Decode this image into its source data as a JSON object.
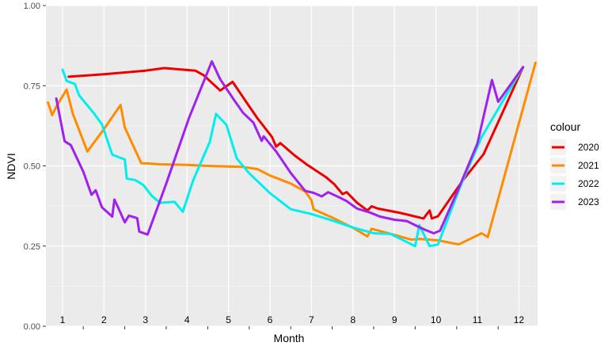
{
  "chart_data": {
    "type": "line",
    "xlabel": "Month",
    "ylabel": "NDVI",
    "xlim": [
      0.6,
      12.45
    ],
    "ylim": [
      0,
      1
    ],
    "month_ticks": [
      "1",
      "2",
      "3",
      "4",
      "5",
      "6",
      "7",
      "8",
      "9",
      "10",
      "11",
      "12"
    ],
    "y_ticks": [
      "0.00",
      "0.25",
      "0.50",
      "0.75",
      "1.00"
    ],
    "y_tick_values": [
      0,
      0.25,
      0.5,
      0.75,
      1.0
    ],
    "grid": true,
    "legend": {
      "title": "colour",
      "position": "right"
    },
    "series": [
      {
        "name": "2020",
        "color": "#ee0000",
        "points": [
          [
            1.15,
            0.778
          ],
          [
            2.0,
            0.786
          ],
          [
            3.0,
            0.797
          ],
          [
            3.45,
            0.805
          ],
          [
            4.2,
            0.797
          ],
          [
            4.4,
            0.783
          ],
          [
            4.8,
            0.735
          ],
          [
            5.1,
            0.762
          ],
          [
            5.4,
            0.705
          ],
          [
            5.7,
            0.648
          ],
          [
            6.05,
            0.59
          ],
          [
            6.15,
            0.56
          ],
          [
            6.25,
            0.571
          ],
          [
            6.6,
            0.532
          ],
          [
            6.9,
            0.503
          ],
          [
            7.35,
            0.465
          ],
          [
            7.55,
            0.443
          ],
          [
            7.75,
            0.412
          ],
          [
            7.85,
            0.418
          ],
          [
            8.1,
            0.385
          ],
          [
            8.35,
            0.361
          ],
          [
            8.45,
            0.374
          ],
          [
            8.6,
            0.367
          ],
          [
            9.15,
            0.353
          ],
          [
            9.7,
            0.336
          ],
          [
            9.85,
            0.361
          ],
          [
            9.9,
            0.336
          ],
          [
            10.05,
            0.343
          ],
          [
            10.65,
            0.455
          ],
          [
            11.15,
            0.537
          ],
          [
            11.6,
            0.665
          ],
          [
            12.1,
            0.808
          ]
        ]
      },
      {
        "name": "2021",
        "color": "#ff8c00",
        "points": [
          [
            0.65,
            0.698
          ],
          [
            0.75,
            0.658
          ],
          [
            0.85,
            0.685
          ],
          [
            1.1,
            0.738
          ],
          [
            1.25,
            0.662
          ],
          [
            1.6,
            0.545
          ],
          [
            2.0,
            0.615
          ],
          [
            2.4,
            0.69
          ],
          [
            2.5,
            0.62
          ],
          [
            2.9,
            0.508
          ],
          [
            3.0,
            0.508
          ],
          [
            3.35,
            0.505
          ],
          [
            4.0,
            0.503
          ],
          [
            4.7,
            0.499
          ],
          [
            5.35,
            0.497
          ],
          [
            5.7,
            0.49
          ],
          [
            6.0,
            0.47
          ],
          [
            6.5,
            0.445
          ],
          [
            6.85,
            0.42
          ],
          [
            7.0,
            0.393
          ],
          [
            7.05,
            0.365
          ],
          [
            7.5,
            0.339
          ],
          [
            8.0,
            0.307
          ],
          [
            8.35,
            0.28
          ],
          [
            8.45,
            0.304
          ],
          [
            9.0,
            0.285
          ],
          [
            9.4,
            0.27
          ],
          [
            9.6,
            0.272
          ],
          [
            10.05,
            0.268
          ],
          [
            10.55,
            0.255
          ],
          [
            11.1,
            0.29
          ],
          [
            11.25,
            0.278
          ],
          [
            12.4,
            0.822
          ]
        ]
      },
      {
        "name": "2022",
        "color": "#00eeee",
        "points": [
          [
            1.0,
            0.8
          ],
          [
            1.1,
            0.765
          ],
          [
            1.3,
            0.755
          ],
          [
            1.4,
            0.72
          ],
          [
            1.75,
            0.665
          ],
          [
            1.95,
            0.63
          ],
          [
            2.2,
            0.535
          ],
          [
            2.4,
            0.525
          ],
          [
            2.5,
            0.52
          ],
          [
            2.55,
            0.46
          ],
          [
            2.75,
            0.456
          ],
          [
            2.95,
            0.44
          ],
          [
            3.15,
            0.407
          ],
          [
            3.35,
            0.385
          ],
          [
            3.7,
            0.388
          ],
          [
            3.9,
            0.357
          ],
          [
            4.15,
            0.455
          ],
          [
            4.55,
            0.575
          ],
          [
            4.7,
            0.662
          ],
          [
            4.95,
            0.628
          ],
          [
            5.2,
            0.523
          ],
          [
            5.5,
            0.477
          ],
          [
            6.0,
            0.415
          ],
          [
            6.5,
            0.365
          ],
          [
            7.0,
            0.35
          ],
          [
            7.5,
            0.33
          ],
          [
            8.0,
            0.308
          ],
          [
            8.5,
            0.29
          ],
          [
            8.9,
            0.288
          ],
          [
            9.15,
            0.272
          ],
          [
            9.5,
            0.25
          ],
          [
            9.6,
            0.315
          ],
          [
            9.85,
            0.25
          ],
          [
            10.05,
            0.255
          ],
          [
            10.6,
            0.44
          ],
          [
            11.1,
            0.59
          ],
          [
            11.6,
            0.7
          ],
          [
            12.1,
            0.808
          ]
        ]
      },
      {
        "name": "2023",
        "color": "#a020f0",
        "points": [
          [
            0.85,
            0.71
          ],
          [
            1.05,
            0.577
          ],
          [
            1.2,
            0.565
          ],
          [
            1.5,
            0.482
          ],
          [
            1.7,
            0.41
          ],
          [
            1.8,
            0.424
          ],
          [
            1.95,
            0.371
          ],
          [
            2.2,
            0.342
          ],
          [
            2.25,
            0.395
          ],
          [
            2.35,
            0.368
          ],
          [
            2.5,
            0.324
          ],
          [
            2.6,
            0.345
          ],
          [
            2.8,
            0.337
          ],
          [
            2.85,
            0.295
          ],
          [
            3.05,
            0.286
          ],
          [
            3.5,
            0.445
          ],
          [
            4.05,
            0.65
          ],
          [
            4.4,
            0.762
          ],
          [
            4.6,
            0.826
          ],
          [
            4.8,
            0.77
          ],
          [
            5.1,
            0.712
          ],
          [
            5.35,
            0.666
          ],
          [
            5.6,
            0.635
          ],
          [
            5.8,
            0.578
          ],
          [
            5.85,
            0.592
          ],
          [
            6.15,
            0.545
          ],
          [
            6.5,
            0.478
          ],
          [
            6.85,
            0.422
          ],
          [
            7.05,
            0.416
          ],
          [
            7.25,
            0.405
          ],
          [
            7.4,
            0.418
          ],
          [
            7.7,
            0.4
          ],
          [
            7.85,
            0.39
          ],
          [
            8.1,
            0.367
          ],
          [
            8.4,
            0.355
          ],
          [
            8.65,
            0.342
          ],
          [
            9.0,
            0.332
          ],
          [
            9.3,
            0.328
          ],
          [
            9.55,
            0.312
          ],
          [
            9.75,
            0.3
          ],
          [
            9.95,
            0.29
          ],
          [
            10.1,
            0.298
          ],
          [
            10.55,
            0.43
          ],
          [
            11.0,
            0.57
          ],
          [
            11.35,
            0.768
          ],
          [
            11.5,
            0.7
          ],
          [
            12.1,
            0.808
          ]
        ]
      }
    ]
  }
}
